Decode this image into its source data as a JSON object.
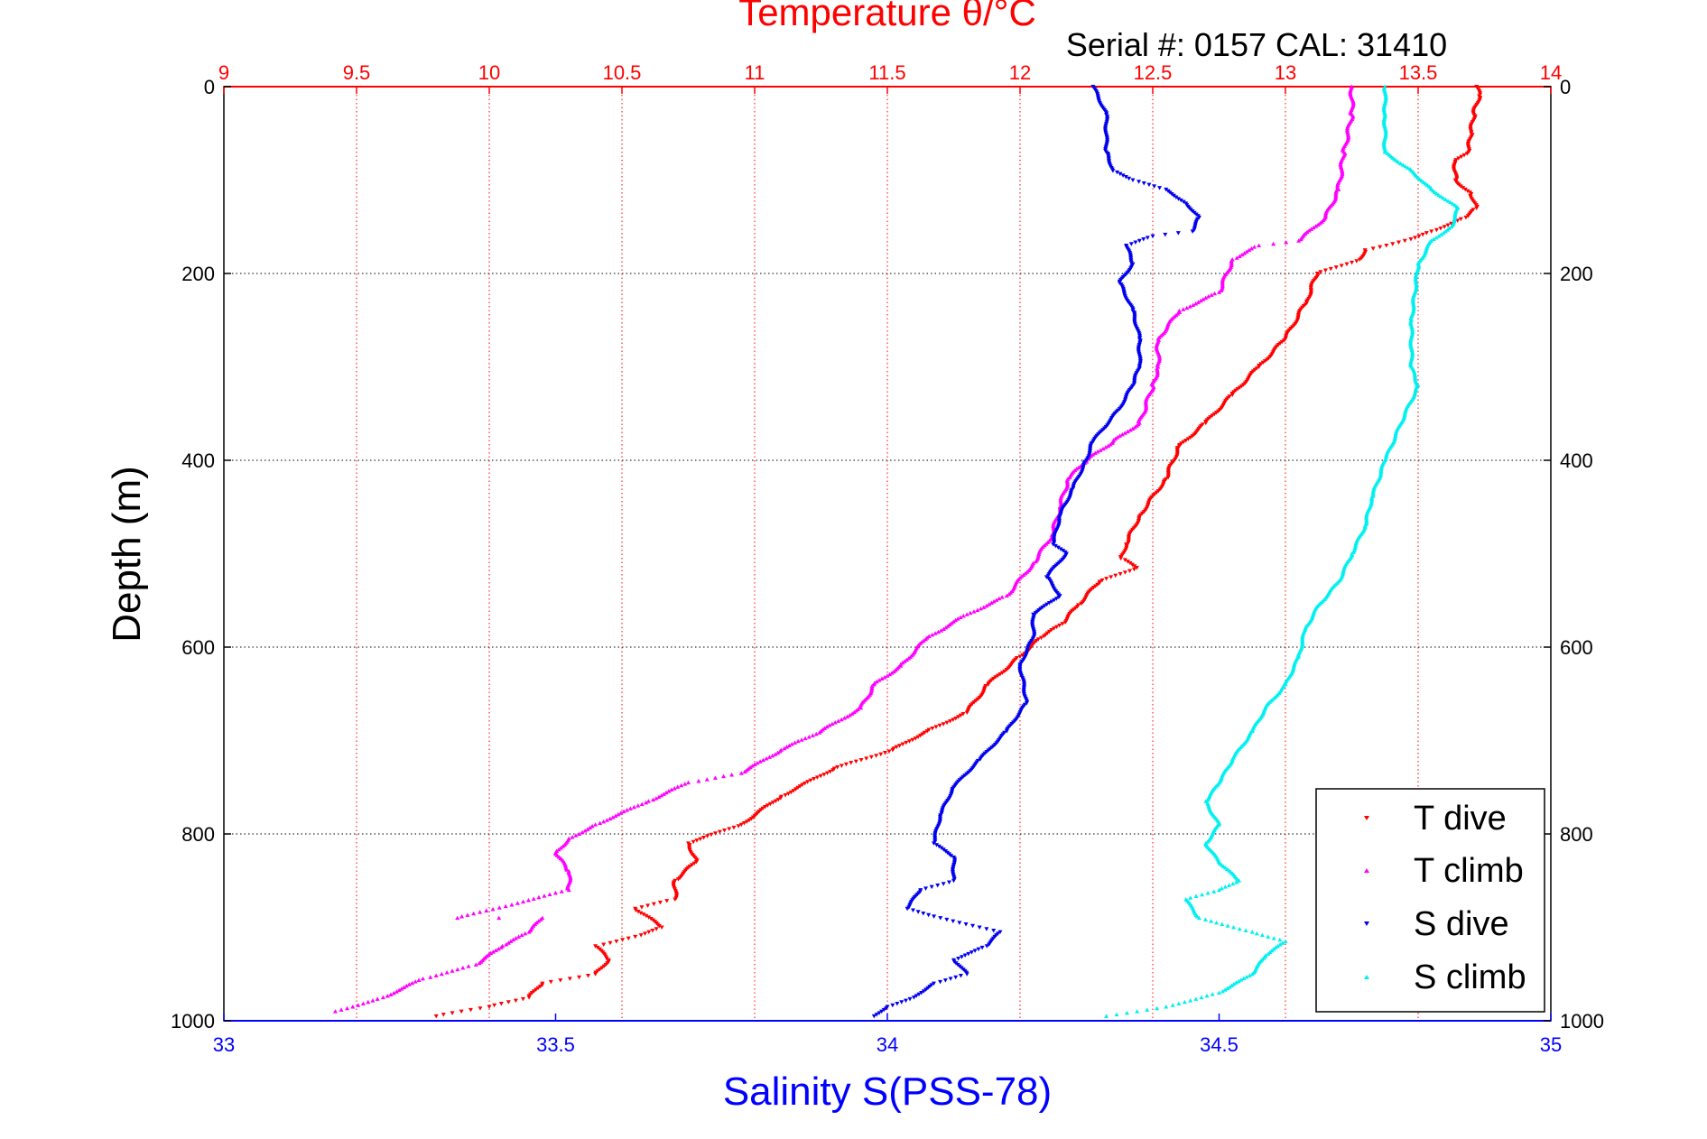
{
  "chart_data": {
    "type": "scatter",
    "title": "Temperature θ/°C",
    "subtitle": "Serial #: 0157  CAL: 31410",
    "xlabel": "Salinity S(PSS-78)",
    "ylabel": "Depth (m)",
    "colors": {
      "temperature_axis": "#ff0000",
      "salinity_axis": "#0000ff",
      "T dive": "#ff0000",
      "T climb": "#ff00ff",
      "S dive": "#0000ee",
      "S climb": "#00f0f0"
    },
    "x_bottom": {
      "label": "Salinity S(PSS-78)",
      "lim": [
        33,
        35
      ],
      "ticks": [
        "33",
        "33.5",
        "34",
        "34.5",
        "35"
      ]
    },
    "x_top": {
      "label": "Temperature θ/°C",
      "lim": [
        9,
        14
      ],
      "ticks": [
        "9",
        "9.5",
        "10",
        "10.5",
        "11",
        "11.5",
        "12",
        "12.5",
        "13",
        "13.5",
        "14"
      ]
    },
    "y": {
      "label": "Depth (m)",
      "lim": [
        0,
        1000
      ],
      "reversed": true,
      "ticks": [
        "0",
        "200",
        "400",
        "600",
        "800",
        "1000"
      ]
    },
    "grid": true,
    "legend_position": "bottom-right",
    "series": [
      {
        "name": "T dive",
        "axis": "temperature",
        "marker": "triangle-down",
        "points": [
          [
            13.72,
            0
          ],
          [
            13.73,
            10
          ],
          [
            13.71,
            30
          ],
          [
            13.7,
            50
          ],
          [
            13.69,
            70
          ],
          [
            13.64,
            80
          ],
          [
            13.64,
            100
          ],
          [
            13.7,
            115
          ],
          [
            13.72,
            130
          ],
          [
            13.68,
            140
          ],
          [
            13.55,
            155
          ],
          [
            13.45,
            165
          ],
          [
            13.3,
            175
          ],
          [
            13.28,
            185
          ],
          [
            13.12,
            200
          ],
          [
            13.08,
            230
          ],
          [
            13.0,
            270
          ],
          [
            12.9,
            300
          ],
          [
            12.8,
            330
          ],
          [
            12.7,
            360
          ],
          [
            12.6,
            385
          ],
          [
            12.55,
            420
          ],
          [
            12.45,
            460
          ],
          [
            12.4,
            490
          ],
          [
            12.38,
            505
          ],
          [
            12.44,
            515
          ],
          [
            12.3,
            530
          ],
          [
            12.22,
            555
          ],
          [
            12.16,
            575
          ],
          [
            12.08,
            590
          ],
          [
            12.0,
            610
          ],
          [
            11.88,
            640
          ],
          [
            11.8,
            670
          ],
          [
            11.65,
            690
          ],
          [
            11.52,
            710
          ],
          [
            11.3,
            730
          ],
          [
            11.1,
            760
          ],
          [
            10.95,
            790
          ],
          [
            10.75,
            810
          ],
          [
            10.78,
            830
          ],
          [
            10.7,
            850
          ],
          [
            10.7,
            870
          ],
          [
            10.55,
            880
          ],
          [
            10.65,
            900
          ],
          [
            10.55,
            910
          ],
          [
            10.4,
            920
          ],
          [
            10.45,
            935
          ],
          [
            10.4,
            950
          ],
          [
            10.2,
            960
          ],
          [
            10.15,
            975
          ],
          [
            10.0,
            985
          ],
          [
            9.8,
            995
          ]
        ]
      },
      {
        "name": "T climb",
        "axis": "temperature",
        "marker": "triangle-up",
        "points": [
          [
            9.42,
            990
          ],
          [
            9.6,
            975
          ],
          [
            9.75,
            955
          ],
          [
            9.95,
            940
          ],
          [
            10.05,
            920
          ],
          [
            10.15,
            905
          ],
          [
            10.2,
            890
          ],
          [
            9.88,
            890
          ],
          [
            10.3,
            860
          ],
          [
            10.3,
            840
          ],
          [
            10.25,
            820
          ],
          [
            10.3,
            805
          ],
          [
            10.4,
            790
          ],
          [
            10.6,
            765
          ],
          [
            10.75,
            745
          ],
          [
            10.95,
            735
          ],
          [
            11.1,
            710
          ],
          [
            11.25,
            690
          ],
          [
            11.4,
            665
          ],
          [
            11.45,
            640
          ],
          [
            11.55,
            620
          ],
          [
            11.65,
            590
          ],
          [
            11.8,
            565
          ],
          [
            11.95,
            545
          ],
          [
            12.05,
            510
          ],
          [
            12.12,
            480
          ],
          [
            12.15,
            450
          ],
          [
            12.18,
            420
          ],
          [
            12.25,
            400
          ],
          [
            12.35,
            380
          ],
          [
            12.45,
            360
          ],
          [
            12.5,
            320
          ],
          [
            12.52,
            300
          ],
          [
            12.52,
            270
          ],
          [
            12.6,
            240
          ],
          [
            12.75,
            220
          ],
          [
            12.8,
            185
          ],
          [
            12.9,
            170
          ],
          [
            13.05,
            165
          ],
          [
            13.15,
            140
          ],
          [
            13.2,
            110
          ],
          [
            13.22,
            70
          ],
          [
            13.25,
            30
          ],
          [
            13.25,
            0
          ]
        ]
      },
      {
        "name": "S dive",
        "axis": "salinity",
        "marker": "triangle-down",
        "points": [
          [
            34.31,
            0
          ],
          [
            34.33,
            30
          ],
          [
            34.33,
            70
          ],
          [
            34.34,
            90
          ],
          [
            34.37,
            100
          ],
          [
            34.42,
            110
          ],
          [
            34.45,
            125
          ],
          [
            34.47,
            140
          ],
          [
            34.46,
            155
          ],
          [
            34.4,
            160
          ],
          [
            34.36,
            170
          ],
          [
            34.37,
            190
          ],
          [
            34.35,
            210
          ],
          [
            34.37,
            240
          ],
          [
            34.38,
            270
          ],
          [
            34.38,
            300
          ],
          [
            34.37,
            320
          ],
          [
            34.35,
            345
          ],
          [
            34.31,
            380
          ],
          [
            34.3,
            400
          ],
          [
            34.28,
            430
          ],
          [
            34.26,
            460
          ],
          [
            34.25,
            490
          ],
          [
            34.27,
            500
          ],
          [
            34.24,
            525
          ],
          [
            34.26,
            545
          ],
          [
            34.22,
            565
          ],
          [
            34.22,
            590
          ],
          [
            34.2,
            620
          ],
          [
            34.21,
            660
          ],
          [
            34.18,
            690
          ],
          [
            34.14,
            720
          ],
          [
            34.1,
            750
          ],
          [
            34.08,
            780
          ],
          [
            34.07,
            810
          ],
          [
            34.1,
            825
          ],
          [
            34.1,
            850
          ],
          [
            34.05,
            860
          ],
          [
            34.03,
            880
          ],
          [
            34.08,
            890
          ],
          [
            34.17,
            905
          ],
          [
            34.15,
            920
          ],
          [
            34.1,
            935
          ],
          [
            34.12,
            950
          ],
          [
            34.07,
            960
          ],
          [
            34.04,
            975
          ],
          [
            34.0,
            985
          ],
          [
            33.98,
            995
          ]
        ]
      },
      {
        "name": "S climb",
        "axis": "salinity",
        "marker": "triangle-up",
        "points": [
          [
            34.33,
            995
          ],
          [
            34.42,
            985
          ],
          [
            34.5,
            970
          ],
          [
            34.55,
            950
          ],
          [
            34.57,
            930
          ],
          [
            34.6,
            915
          ],
          [
            34.55,
            905
          ],
          [
            34.47,
            890
          ],
          [
            34.45,
            870
          ],
          [
            34.5,
            860
          ],
          [
            34.53,
            850
          ],
          [
            34.5,
            830
          ],
          [
            34.48,
            810
          ],
          [
            34.5,
            790
          ],
          [
            34.48,
            765
          ],
          [
            34.5,
            745
          ],
          [
            34.52,
            720
          ],
          [
            34.55,
            690
          ],
          [
            34.57,
            665
          ],
          [
            34.6,
            640
          ],
          [
            34.62,
            610
          ],
          [
            34.63,
            580
          ],
          [
            34.65,
            555
          ],
          [
            34.68,
            530
          ],
          [
            34.7,
            500
          ],
          [
            34.72,
            470
          ],
          [
            34.73,
            440
          ],
          [
            34.75,
            400
          ],
          [
            34.78,
            350
          ],
          [
            34.8,
            320
          ],
          [
            34.79,
            300
          ],
          [
            34.79,
            250
          ],
          [
            34.8,
            190
          ],
          [
            34.82,
            165
          ],
          [
            34.85,
            150
          ],
          [
            34.86,
            130
          ],
          [
            34.82,
            110
          ],
          [
            34.79,
            90
          ],
          [
            34.75,
            70
          ],
          [
            34.75,
            30
          ],
          [
            34.75,
            0
          ]
        ]
      }
    ]
  }
}
